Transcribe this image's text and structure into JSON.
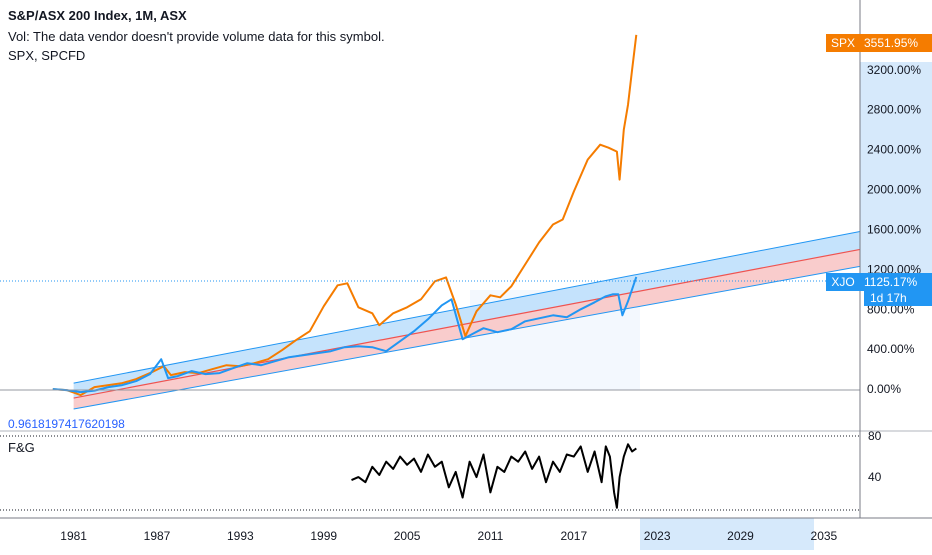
{
  "header": {
    "title": "S&P/ASX 200 Index, 1M, ASX",
    "vol_note": "Vol: The data vendor doesn't provide volume data for this symbol.",
    "compare_symbols": "SPX, SPCFD"
  },
  "correlation_value": "0.9618197417620198",
  "indicator_label": "F&G",
  "tags": {
    "spx_name": "SPX",
    "spx_value": "3551.95%",
    "xjo_name": "XJO",
    "xjo_value": "1125.17%",
    "xjo_time": "1d 17h"
  },
  "colors": {
    "spx": "#f57c00",
    "xjo": "#2196f3",
    "channel_fill": "#bbdefb",
    "channel_line": "#2196f3",
    "regression_line": "#ef5350",
    "regression_fill": "#f8c6c6",
    "fg_line": "#000000",
    "axis_text": "#131722",
    "grid": "#e0e3eb"
  },
  "chart_data": [
    {
      "type": "line",
      "title": "S&P/ASX 200 Index, 1M, ASX",
      "y_unit": "%",
      "y_axis_ticks": [
        "3200.00%",
        "2800.00%",
        "2400.00%",
        "2000.00%",
        "1600.00%",
        "1200.00%",
        "800.00%",
        "400.00%",
        "0.00%"
      ],
      "y_tick_values": [
        3200,
        2800,
        2400,
        2000,
        1600,
        1200,
        800,
        400,
        0
      ],
      "ylim": [
        -420,
        3900
      ],
      "x_axis_ticks": [
        "1981",
        "1987",
        "1993",
        "1999",
        "2005",
        "2011",
        "2017",
        "2023",
        "2029",
        "2035"
      ],
      "x_tick_values": [
        1981,
        1987,
        1993,
        1999,
        2005,
        2011,
        2017,
        2023,
        2029,
        2035
      ],
      "xlim": [
        1975.7,
        2037.6
      ],
      "last_values": {
        "SPX": 3551.95,
        "XJO": 1125.17
      },
      "series": [
        {
          "name": "SPX",
          "x": [
            1979.5,
            1980.5,
            1981.5,
            1982.5,
            1983.5,
            1984.5,
            1985.5,
            1986.5,
            1987.5,
            1988,
            1989,
            1990,
            1991,
            1992,
            1993,
            1994,
            1995,
            1996,
            1997,
            1998,
            1999,
            2000,
            2000.7,
            2001.5,
            2002.5,
            2003,
            2004,
            2005,
            2006,
            2007,
            2007.8,
            2008.5,
            2009.2,
            2010,
            2011,
            2011.7,
            2012.5,
            2013.5,
            2014.5,
            2015.5,
            2016.2,
            2017,
            2018,
            2018.9,
            2019.5,
            2020.1,
            2020.3,
            2020.6,
            2020.9,
            2021.2,
            2021.5
          ],
          "y": [
            0,
            -10,
            -60,
            20,
            40,
            60,
            100,
            160,
            230,
            140,
            170,
            160,
            200,
            240,
            230,
            260,
            300,
            390,
            490,
            580,
            830,
            1040,
            1060,
            820,
            760,
            640,
            760,
            820,
            900,
            1080,
            1120,
            850,
            530,
            780,
            940,
            920,
            1030,
            1250,
            1470,
            1650,
            1700,
            1980,
            2300,
            2450,
            2420,
            2380,
            2100,
            2600,
            2850,
            3200,
            3550
          ]
        },
        {
          "name": "XJO",
          "x": [
            1979.5,
            1980.5,
            1981.5,
            1982.5,
            1983.5,
            1984.5,
            1985.5,
            1986.5,
            1987.3,
            1987.8,
            1988.5,
            1989.5,
            1990.5,
            1991.5,
            1992.5,
            1993.5,
            1994.5,
            1995.5,
            1996.5,
            1997.5,
            1998.5,
            1999.5,
            2000.5,
            2001.5,
            2002.5,
            2003.5,
            2004.5,
            2005.5,
            2006.5,
            2007.5,
            2008.2,
            2009,
            2009.8,
            2010.5,
            2011.5,
            2012.5,
            2013.5,
            2014.5,
            2015.5,
            2016.5,
            2017.5,
            2018.5,
            2019.3,
            2019.8,
            2020.2,
            2020.5,
            2020.9,
            2021.2,
            2021.5
          ],
          "y": [
            0,
            -10,
            -30,
            -15,
            20,
            40,
            80,
            150,
            300,
            110,
            130,
            180,
            150,
            160,
            210,
            260,
            240,
            280,
            320,
            340,
            360,
            380,
            420,
            430,
            420,
            380,
            480,
            580,
            700,
            840,
            900,
            500,
            560,
            610,
            570,
            600,
            680,
            710,
            740,
            720,
            800,
            870,
            930,
            950,
            950,
            740,
            880,
            1000,
            1125
          ]
        }
      ],
      "regression_channel": {
        "x": [
          1981,
          2037.6
        ],
        "upper": [
          60,
          1580
        ],
        "middle": [
          -90,
          1400
        ],
        "lower": [
          -200,
          1230
        ]
      },
      "correlation": 0.9618197417620198
    },
    {
      "type": "line",
      "title": "F&G",
      "y_axis_ticks": [
        "80",
        "40"
      ],
      "y_tick_values": [
        80,
        40
      ],
      "ylim": [
        0,
        85
      ],
      "series": [
        {
          "name": "F&G",
          "x": [
            2001,
            2001.5,
            2002,
            2002.5,
            2003,
            2003.5,
            2004,
            2004.5,
            2005,
            2005.5,
            2006,
            2006.5,
            2007,
            2007.5,
            2008,
            2008.5,
            2009,
            2009.5,
            2010,
            2010.5,
            2011,
            2011.5,
            2012,
            2012.5,
            2013,
            2013.5,
            2014,
            2014.5,
            2015,
            2015.5,
            2016,
            2016.5,
            2017,
            2017.5,
            2018,
            2018.5,
            2019,
            2019.3,
            2019.6,
            2019.9,
            2020.1,
            2020.3,
            2020.6,
            2020.9,
            2021.2,
            2021.5
          ],
          "y": [
            37,
            40,
            35,
            50,
            42,
            55,
            48,
            60,
            52,
            58,
            45,
            62,
            50,
            55,
            30,
            45,
            20,
            55,
            40,
            62,
            25,
            50,
            45,
            60,
            55,
            65,
            48,
            60,
            35,
            55,
            45,
            62,
            60,
            70,
            45,
            65,
            35,
            70,
            60,
            25,
            10,
            40,
            60,
            72,
            65,
            68
          ]
        }
      ]
    }
  ]
}
